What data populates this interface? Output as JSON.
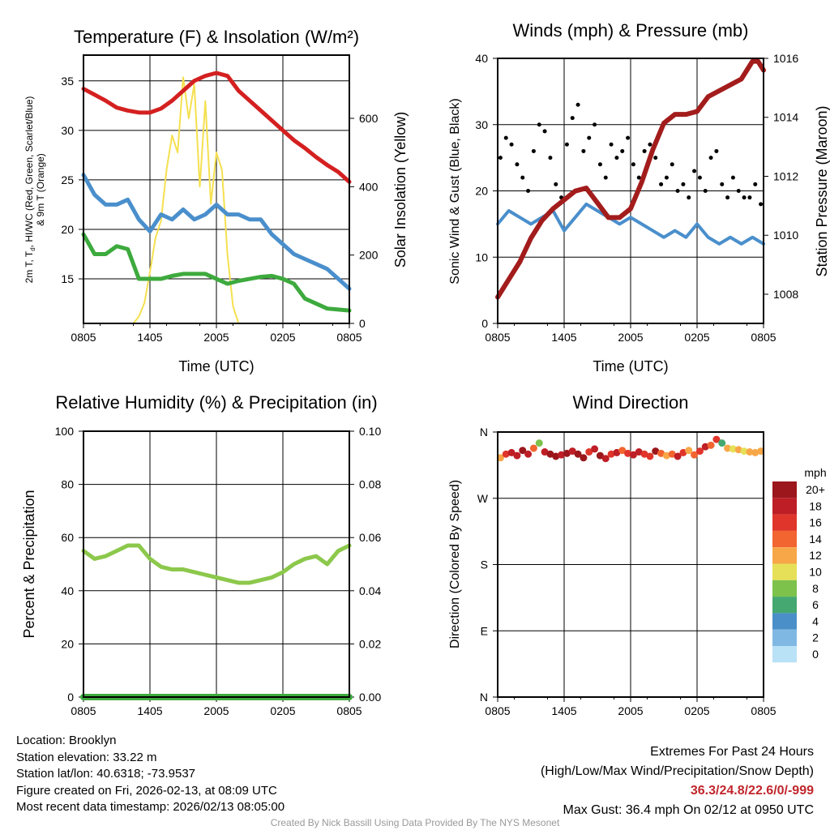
{
  "colors": {
    "temp": "#d42020",
    "temp9m": "#f08030",
    "dew": "#4a8fcc",
    "hiwc": "#3daa3d",
    "solar": "#f5e050",
    "sonic": "#4a8fcc",
    "gust": "#000000",
    "pressure": "#a31c1c",
    "rh": "#8cc84b",
    "precip": "#3daa3d"
  },
  "chart_data": [
    {
      "type": "line",
      "title": "Temperature (F) & Insolation (W/m²)",
      "xlabel": "Time (UTC)",
      "ylabel": "2m T, Td, HI/WC (Red, Green, Scarlet/Blue) & 9m T (Orange)",
      "ylabel_line1": "2m T, T",
      "ylabel_sub": "d",
      "ylabel_line1b": ", HI/WC (Red, Green, Scarlet/Blue)",
      "ylabel_line2": "& 9m T (Orange)",
      "y2label": "Solar Insolation (Yellow)",
      "xticks": [
        "0805",
        "1405",
        "2005",
        "0205",
        "0805"
      ],
      "yticks": [
        15,
        20,
        25,
        30,
        35
      ],
      "ylim": [
        10.5,
        37.6
      ],
      "y2ticks": [
        0,
        200,
        400,
        600
      ],
      "y2lim": [
        0,
        785
      ],
      "x_hours": [
        0,
        1,
        2,
        3,
        4,
        5,
        6,
        7,
        8,
        9,
        10,
        11,
        12,
        13,
        14,
        15,
        16,
        17,
        18,
        19,
        20,
        21,
        22,
        23,
        24
      ],
      "series": [
        {
          "name": "2m T",
          "color_key": "temp",
          "values": [
            34.2,
            33.6,
            33,
            32.3,
            32,
            31.8,
            31.8,
            32.2,
            33,
            34,
            35,
            35.5,
            35.8,
            35.5,
            34,
            33,
            32,
            31,
            30,
            29,
            28.2,
            27.3,
            26.5,
            25.8,
            24.8
          ]
        },
        {
          "name": "Dewpoint",
          "color_key": "dew",
          "values": [
            25.5,
            23.5,
            22.5,
            22.5,
            23,
            21,
            19.8,
            21.5,
            21,
            22,
            21,
            21.5,
            22.5,
            21.5,
            21.5,
            21,
            21,
            19.5,
            18.5,
            17.5,
            17,
            16.5,
            16,
            15,
            14
          ]
        },
        {
          "name": "HI/WC",
          "color_key": "hiwc",
          "values": [
            19.5,
            17.5,
            17.5,
            18.3,
            18,
            15,
            15,
            15,
            15.3,
            15.5,
            15.5,
            15.5,
            15,
            14.5,
            14.8,
            15,
            15.2,
            15.3,
            15,
            14.5,
            13,
            12.5,
            12,
            11.9,
            11.8
          ]
        }
      ],
      "solar": {
        "x_hours": [
          0,
          4.5,
          5,
          5.5,
          6,
          6.5,
          7,
          7.5,
          8,
          8.5,
          9,
          9.5,
          10,
          10.5,
          11,
          11.5,
          12,
          12.5,
          13,
          13.5,
          14,
          24
        ],
        "values": [
          0,
          0,
          20,
          60,
          150,
          250,
          300,
          450,
          550,
          500,
          720,
          600,
          700,
          400,
          650,
          350,
          500,
          450,
          200,
          50,
          0,
          0
        ]
      }
    },
    {
      "type": "line",
      "title": "Winds (mph) & Pressure (mb)",
      "xlabel": "Time (UTC)",
      "ylabel": "Sonic Wind & Gust (Blue, Black)",
      "y2label": "Station Pressure (Maroon)",
      "xticks": [
        "0805",
        "1405",
        "2005",
        "0205",
        "0805"
      ],
      "yticks": [
        0,
        10,
        20,
        30,
        40
      ],
      "ylim": [
        0,
        40
      ],
      "y2ticks": [
        1008,
        1010,
        1012,
        1014,
        1016
      ],
      "y2lim": [
        1007.01,
        1016
      ],
      "sonic": {
        "x_hours": [
          0,
          1,
          2,
          3,
          4,
          5,
          6,
          7,
          8,
          9,
          10,
          11,
          12,
          13,
          14,
          15,
          16,
          17,
          18,
          19,
          20,
          21,
          22,
          23,
          24
        ],
        "values": [
          15,
          17,
          16,
          15,
          16,
          17,
          14,
          16,
          18,
          17,
          16,
          15,
          16,
          15,
          14,
          13,
          14,
          13,
          15,
          13,
          12,
          13,
          12,
          13,
          12
        ]
      },
      "gust": {
        "values": [
          25,
          28,
          27,
          24,
          22,
          20,
          26,
          30,
          29,
          25,
          21,
          19,
          27,
          31,
          33,
          26,
          28,
          30,
          24,
          22,
          27,
          25,
          26,
          28,
          24,
          22,
          26,
          27,
          25,
          21,
          22,
          24,
          20,
          21,
          19,
          23,
          22,
          20,
          25,
          26,
          21,
          19,
          22,
          20,
          19,
          19,
          21,
          18
        ]
      },
      "pressure": {
        "x_hours": [
          0,
          1,
          2,
          3,
          4,
          5,
          6,
          7,
          8,
          9,
          10,
          11,
          12,
          13,
          14,
          15,
          16,
          17,
          18,
          19,
          20,
          21,
          22,
          23,
          23.5,
          24
        ],
        "values": [
          1007.9,
          1008.5,
          1009.1,
          1009.9,
          1010.5,
          1010.9,
          1011.2,
          1011.5,
          1011.6,
          1011.1,
          1010.6,
          1010.6,
          1010.9,
          1011.8,
          1012.9,
          1013.8,
          1014.1,
          1014.1,
          1014.2,
          1014.7,
          1014.9,
          1015.1,
          1015.3,
          1015.9,
          1015.9,
          1015.6
        ]
      }
    },
    {
      "type": "line",
      "title": "Relative Humidity (%) & Precipitation (in)",
      "ylabel": "Percent & Precipitation",
      "xticks": [
        "0805",
        "1405",
        "2005",
        "0205",
        "0805"
      ],
      "yticks": [
        0,
        20,
        40,
        60,
        80,
        100
      ],
      "ylim": [
        0,
        100
      ],
      "y2ticks": [
        "0.00",
        "0.02",
        "0.04",
        "0.06",
        "0.08",
        "0.10"
      ],
      "y2lim": [
        0,
        0.1
      ],
      "rh": {
        "x_hours": [
          0,
          1,
          2,
          3,
          4,
          5,
          6,
          7,
          8,
          9,
          10,
          11,
          12,
          13,
          14,
          15,
          16,
          17,
          18,
          19,
          20,
          21,
          22,
          23,
          24
        ],
        "values": [
          55,
          52,
          53,
          55,
          57,
          57,
          52,
          49,
          48,
          48,
          47,
          46,
          45,
          44,
          43,
          43,
          44,
          45,
          47,
          50,
          52,
          53,
          50,
          55,
          57
        ]
      },
      "precip": {
        "x_hours": [
          0,
          24
        ],
        "values": [
          0,
          0
        ]
      }
    },
    {
      "type": "scatter",
      "title": "Wind Direction",
      "ylabel": "Direction (Colored By Speed)",
      "xticks": [
        "0805",
        "1405",
        "2005",
        "0205",
        "0805"
      ],
      "yticks": [
        "N",
        "E",
        "S",
        "W",
        "N"
      ],
      "ylim": [
        0,
        360
      ],
      "directions": [
        325,
        330,
        332,
        328,
        335,
        330,
        338,
        345,
        333,
        330,
        327,
        329,
        331,
        334,
        330,
        325,
        333,
        337,
        328,
        324,
        330,
        332,
        335,
        331,
        329,
        333,
        330,
        327,
        334,
        331,
        328,
        330,
        327,
        332,
        335,
        329,
        334,
        340,
        342,
        350,
        345,
        338,
        337,
        336,
        334,
        333,
        332,
        334
      ],
      "speeds": [
        12,
        16,
        18,
        19,
        20,
        18,
        14,
        8,
        18,
        20,
        21,
        19,
        20,
        18,
        20,
        22,
        17,
        18,
        20,
        19,
        16,
        18,
        14,
        16,
        18,
        19,
        17,
        16,
        20,
        14,
        12,
        15,
        18,
        16,
        12,
        14,
        16,
        18,
        14,
        17,
        6,
        12,
        10,
        12,
        10,
        12,
        13,
        12
      ],
      "legend": {
        "title": "mph",
        "labels": [
          "20+",
          "18",
          "16",
          "14",
          "12",
          "10",
          "8",
          "6",
          "4",
          "2",
          "0"
        ],
        "colors": [
          "#9b171c",
          "#be1e26",
          "#e0352b",
          "#f26430",
          "#f8a748",
          "#e6e058",
          "#7dc24b",
          "#45a870",
          "#4b8fc8",
          "#80b8e4",
          "#b9e2f7"
        ]
      }
    }
  ],
  "info": {
    "location": "Location: Brooklyn",
    "elevation": "Station elevation: 33.22 m",
    "latlon": "Station lat/lon: 40.6318; -73.9537",
    "created": "Figure created on Fri, 2026-02-13, at 08:09 UTC",
    "recent": "Most recent data timestamp: 2026/02/13 08:05:00"
  },
  "extremes": {
    "title": "Extremes For Past 24 Hours",
    "subtitle": "(High/Low/Max Wind/Precipitation/Snow Depth)",
    "values": "36.3/24.8/22.6/0/-999",
    "max_gust": "Max Gust: 36.4 mph On 02/12 at 0950 UTC"
  },
  "credit": "Created By Nick Bassill Using Data Provided By The NYS Mesonet"
}
